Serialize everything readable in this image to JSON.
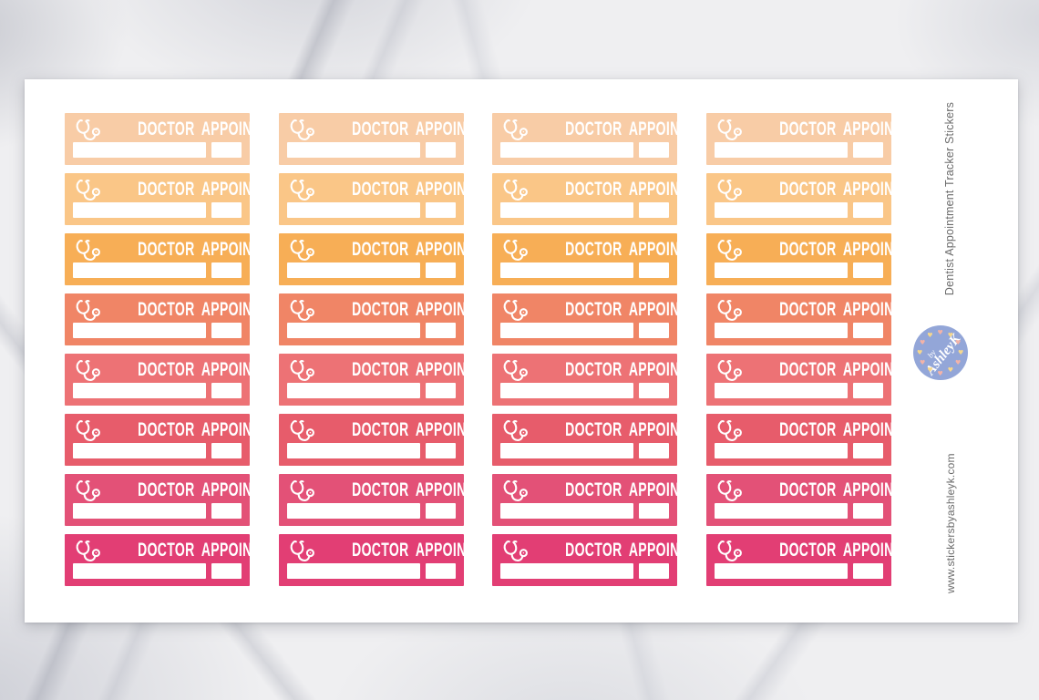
{
  "sheet": {
    "side_title": "Dentist Appointment Tracker Stickers",
    "website": "www.stickersbyashleyk.com",
    "logo": {
      "by": "by",
      "name": "AshleyK",
      "bg_color": "#93A6D8",
      "heart_glyph": "♥",
      "heart_colors": [
        "#F3B3A8",
        "#F6D88D"
      ]
    }
  },
  "sticker": {
    "label": "DOCTOR APPOINTMENT",
    "icon": "stethoscope-icon",
    "text_color": "#FFFFFF"
  },
  "grid": {
    "columns": 4,
    "rows": 8,
    "row_colors": [
      "#F8CCA6",
      "#FAC687",
      "#F7AE56",
      "#F08566",
      "#ED7275",
      "#E75C6B",
      "#E35177",
      "#E23E74"
    ]
  }
}
